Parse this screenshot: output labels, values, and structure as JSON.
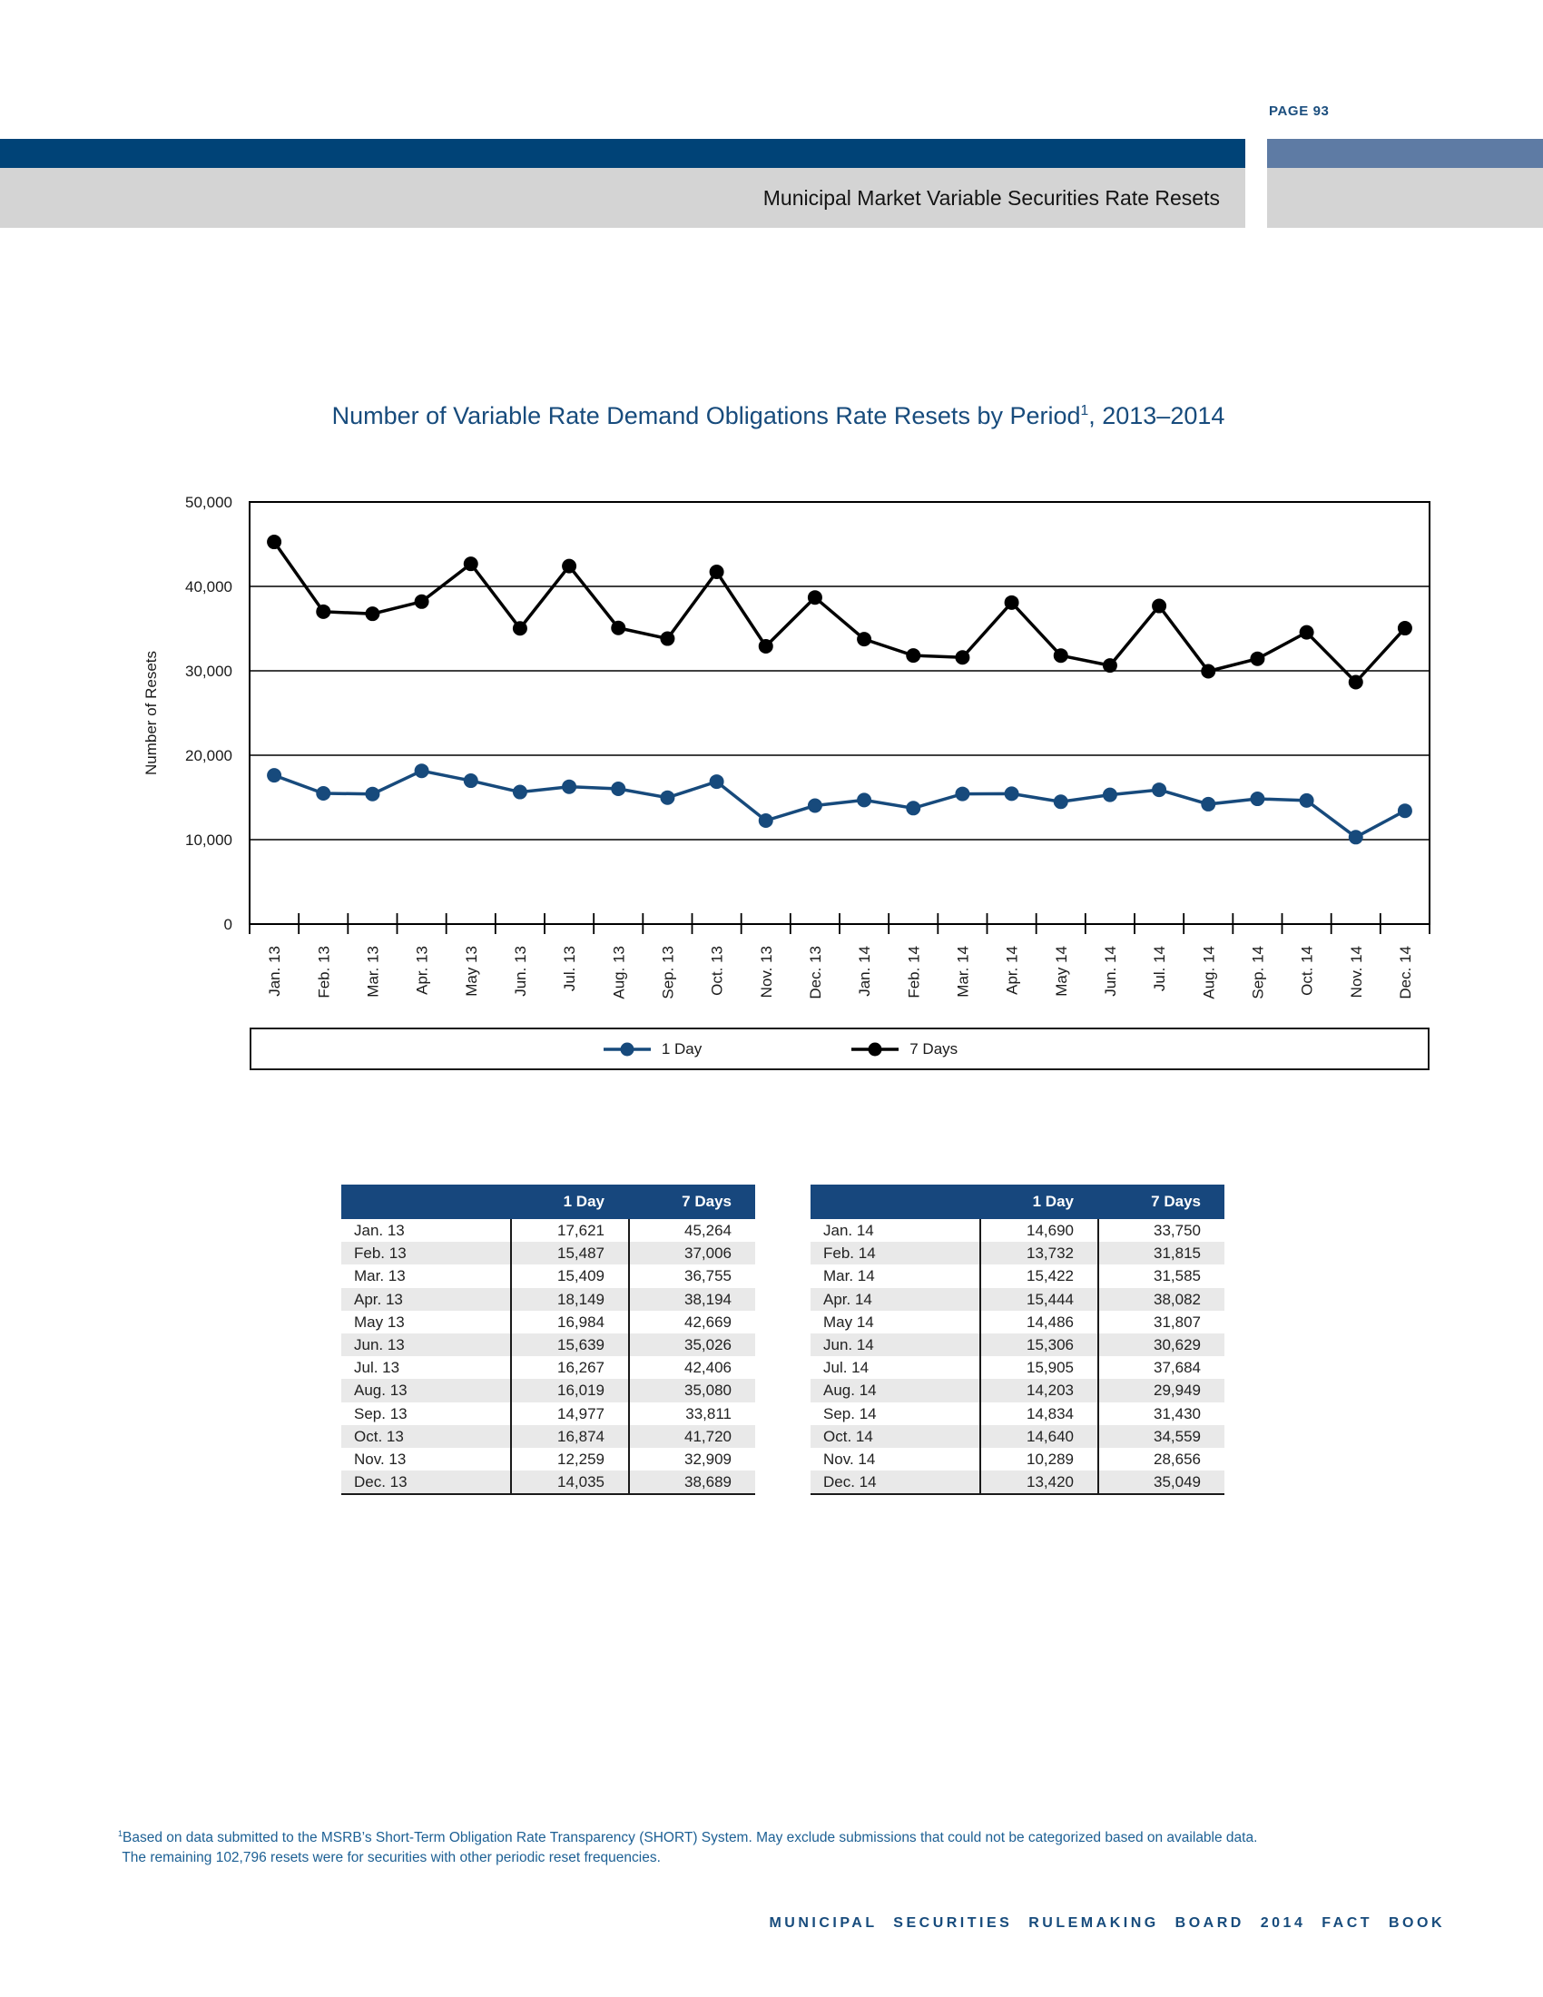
{
  "page": {
    "page_label": "PAGE 93",
    "footer": "MUNICIPAL SECURITIES RULEMAKING BOARD 2014 FACT BOOK"
  },
  "header": {
    "section_title": "Municipal Market Variable Securities Rate Resets"
  },
  "chart": {
    "title_main": "Number of Variable Rate Demand Obligations Rate Resets by Period",
    "title_sup": "1",
    "title_suffix": ", 2013–2014"
  },
  "chart_data": {
    "type": "line",
    "title": "Number of Variable Rate Demand Obligations Rate Resets by Period, 2013–2014",
    "xlabel": "",
    "ylabel": "Number of Resets",
    "ylim": [
      0,
      50000
    ],
    "ytick_step": 10000,
    "ytick_labels": [
      "0",
      "10,000",
      "20,000",
      "30,000",
      "40,000",
      "50,000"
    ],
    "grid": "horizontal",
    "legend_position": "bottom",
    "categories": [
      "Jan. 13",
      "Feb. 13",
      "Mar. 13",
      "Apr. 13",
      "May 13",
      "Jun. 13",
      "Jul. 13",
      "Aug. 13",
      "Sep. 13",
      "Oct. 13",
      "Nov. 13",
      "Dec. 13",
      "Jan. 14",
      "Feb. 14",
      "Mar. 14",
      "Apr. 14",
      "May 14",
      "Jun. 14",
      "Jul. 14",
      "Aug. 14",
      "Sep. 14",
      "Oct. 14",
      "Nov. 14",
      "Dec. 14"
    ],
    "series": [
      {
        "name": "1 Day",
        "color": "#174a7c",
        "values": [
          17621,
          15487,
          15409,
          18149,
          16984,
          15639,
          16267,
          16019,
          14977,
          16874,
          12259,
          14035,
          14690,
          13732,
          15422,
          15444,
          14486,
          15306,
          15905,
          14203,
          14834,
          14640,
          10289,
          13420
        ]
      },
      {
        "name": "7 Days",
        "color": "#000000",
        "values": [
          45264,
          37006,
          36755,
          38194,
          42669,
          35026,
          42406,
          35080,
          33811,
          41720,
          32909,
          38689,
          33750,
          31815,
          31585,
          38082,
          31807,
          30629,
          37684,
          29949,
          31430,
          34559,
          28656,
          35049
        ]
      }
    ]
  },
  "tables": [
    {
      "columns": [
        "",
        "1 Day",
        "7 Days"
      ],
      "rows": [
        [
          "Jan. 13",
          "17,621",
          "45,264"
        ],
        [
          "Feb. 13",
          "15,487",
          "37,006"
        ],
        [
          "Mar. 13",
          "15,409",
          "36,755"
        ],
        [
          "Apr. 13",
          "18,149",
          "38,194"
        ],
        [
          "May 13",
          "16,984",
          "42,669"
        ],
        [
          "Jun. 13",
          "15,639",
          "35,026"
        ],
        [
          "Jul. 13",
          "16,267",
          "42,406"
        ],
        [
          "Aug. 13",
          "16,019",
          "35,080"
        ],
        [
          "Sep. 13",
          "14,977",
          "33,811"
        ],
        [
          "Oct. 13",
          "16,874",
          "41,720"
        ],
        [
          "Nov. 13",
          "12,259",
          "32,909"
        ],
        [
          "Dec. 13",
          "14,035",
          "38,689"
        ]
      ]
    },
    {
      "columns": [
        "",
        "1 Day",
        "7 Days"
      ],
      "rows": [
        [
          "Jan. 14",
          "14,690",
          "33,750"
        ],
        [
          "Feb. 14",
          "13,732",
          "31,815"
        ],
        [
          "Mar. 14",
          "15,422",
          "31,585"
        ],
        [
          "Apr. 14",
          "15,444",
          "38,082"
        ],
        [
          "May 14",
          "14,486",
          "31,807"
        ],
        [
          "Jun. 14",
          "15,306",
          "30,629"
        ],
        [
          "Jul. 14",
          "15,905",
          "37,684"
        ],
        [
          "Aug. 14",
          "14,203",
          "29,949"
        ],
        [
          "Sep. 14",
          "14,834",
          "31,430"
        ],
        [
          "Oct. 14",
          "14,640",
          "34,559"
        ],
        [
          "Nov. 14",
          "10,289",
          "28,656"
        ],
        [
          "Dec. 14",
          "13,420",
          "35,049"
        ]
      ]
    }
  ],
  "footnote": {
    "sup": "1",
    "line1": "Based on data submitted to the MSRB’s Short-Term Obligation Rate Transparency (SHORT) System. May exclude submissions that could not be categorized based on available data.",
    "line2": " The remaining 102,796 resets were for securities with other periodic reset frequencies."
  },
  "colors": {
    "navy_bar": "#004377",
    "slate_bar": "#5e7ba4",
    "gray_bar": "#d4d4d4",
    "accent_navy": "#174b7c",
    "table_header_bg": "#17477d",
    "table_row_alt": "#e9e9e9",
    "series_1day": "#174a7c",
    "series_7days": "#000000",
    "footnote_blue": "#1d6094"
  }
}
